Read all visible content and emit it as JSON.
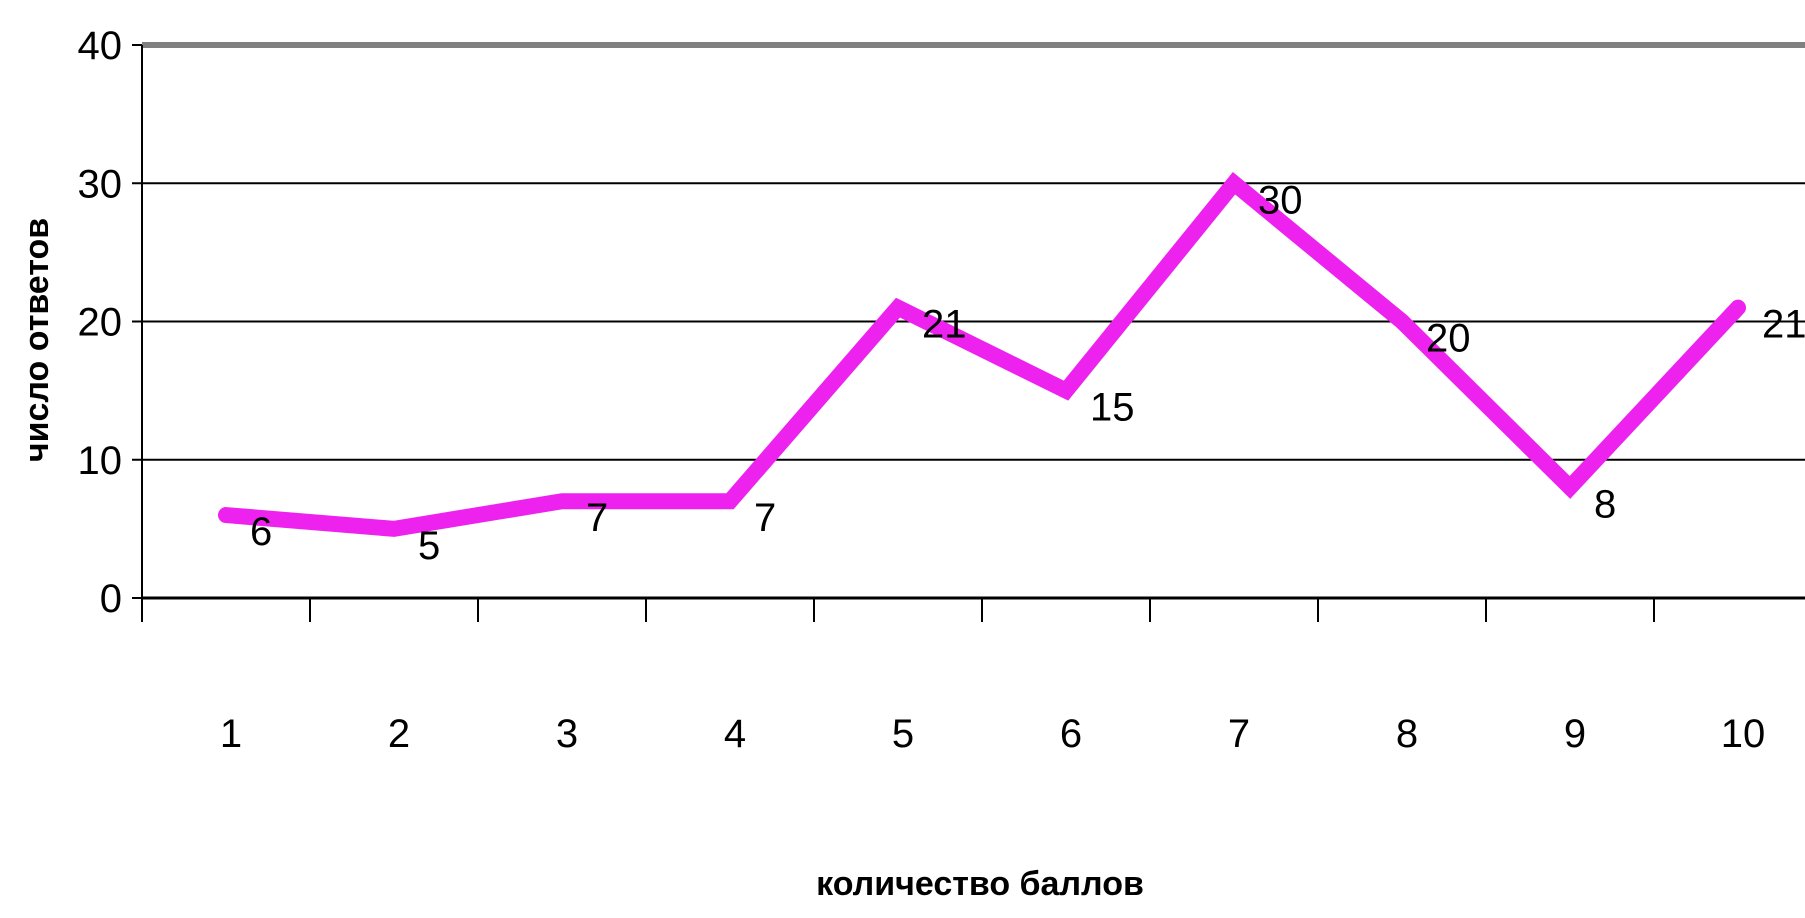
{
  "chart_data": {
    "type": "line",
    "title": "",
    "xlabel": "количество баллов",
    "ylabel": "число ответов",
    "categories": [
      "1",
      "2",
      "3",
      "4",
      "5",
      "6",
      "7",
      "8",
      "9",
      "10"
    ],
    "series": [
      {
        "values": [
          6,
          5,
          7,
          7,
          21,
          15,
          30,
          20,
          8,
          21
        ]
      }
    ],
    "ylim": [
      0,
      40
    ],
    "yticks": [
      "0",
      "10",
      "20",
      "30",
      "40"
    ],
    "data_labels": [
      "6",
      "5",
      "7",
      "7",
      "21",
      "15",
      "30",
      "20",
      "8",
      "21"
    ],
    "grid": true,
    "legend": "none",
    "colors": {
      "line": "#ee22ee",
      "grid": "#000000",
      "top_border": "#808080"
    }
  }
}
